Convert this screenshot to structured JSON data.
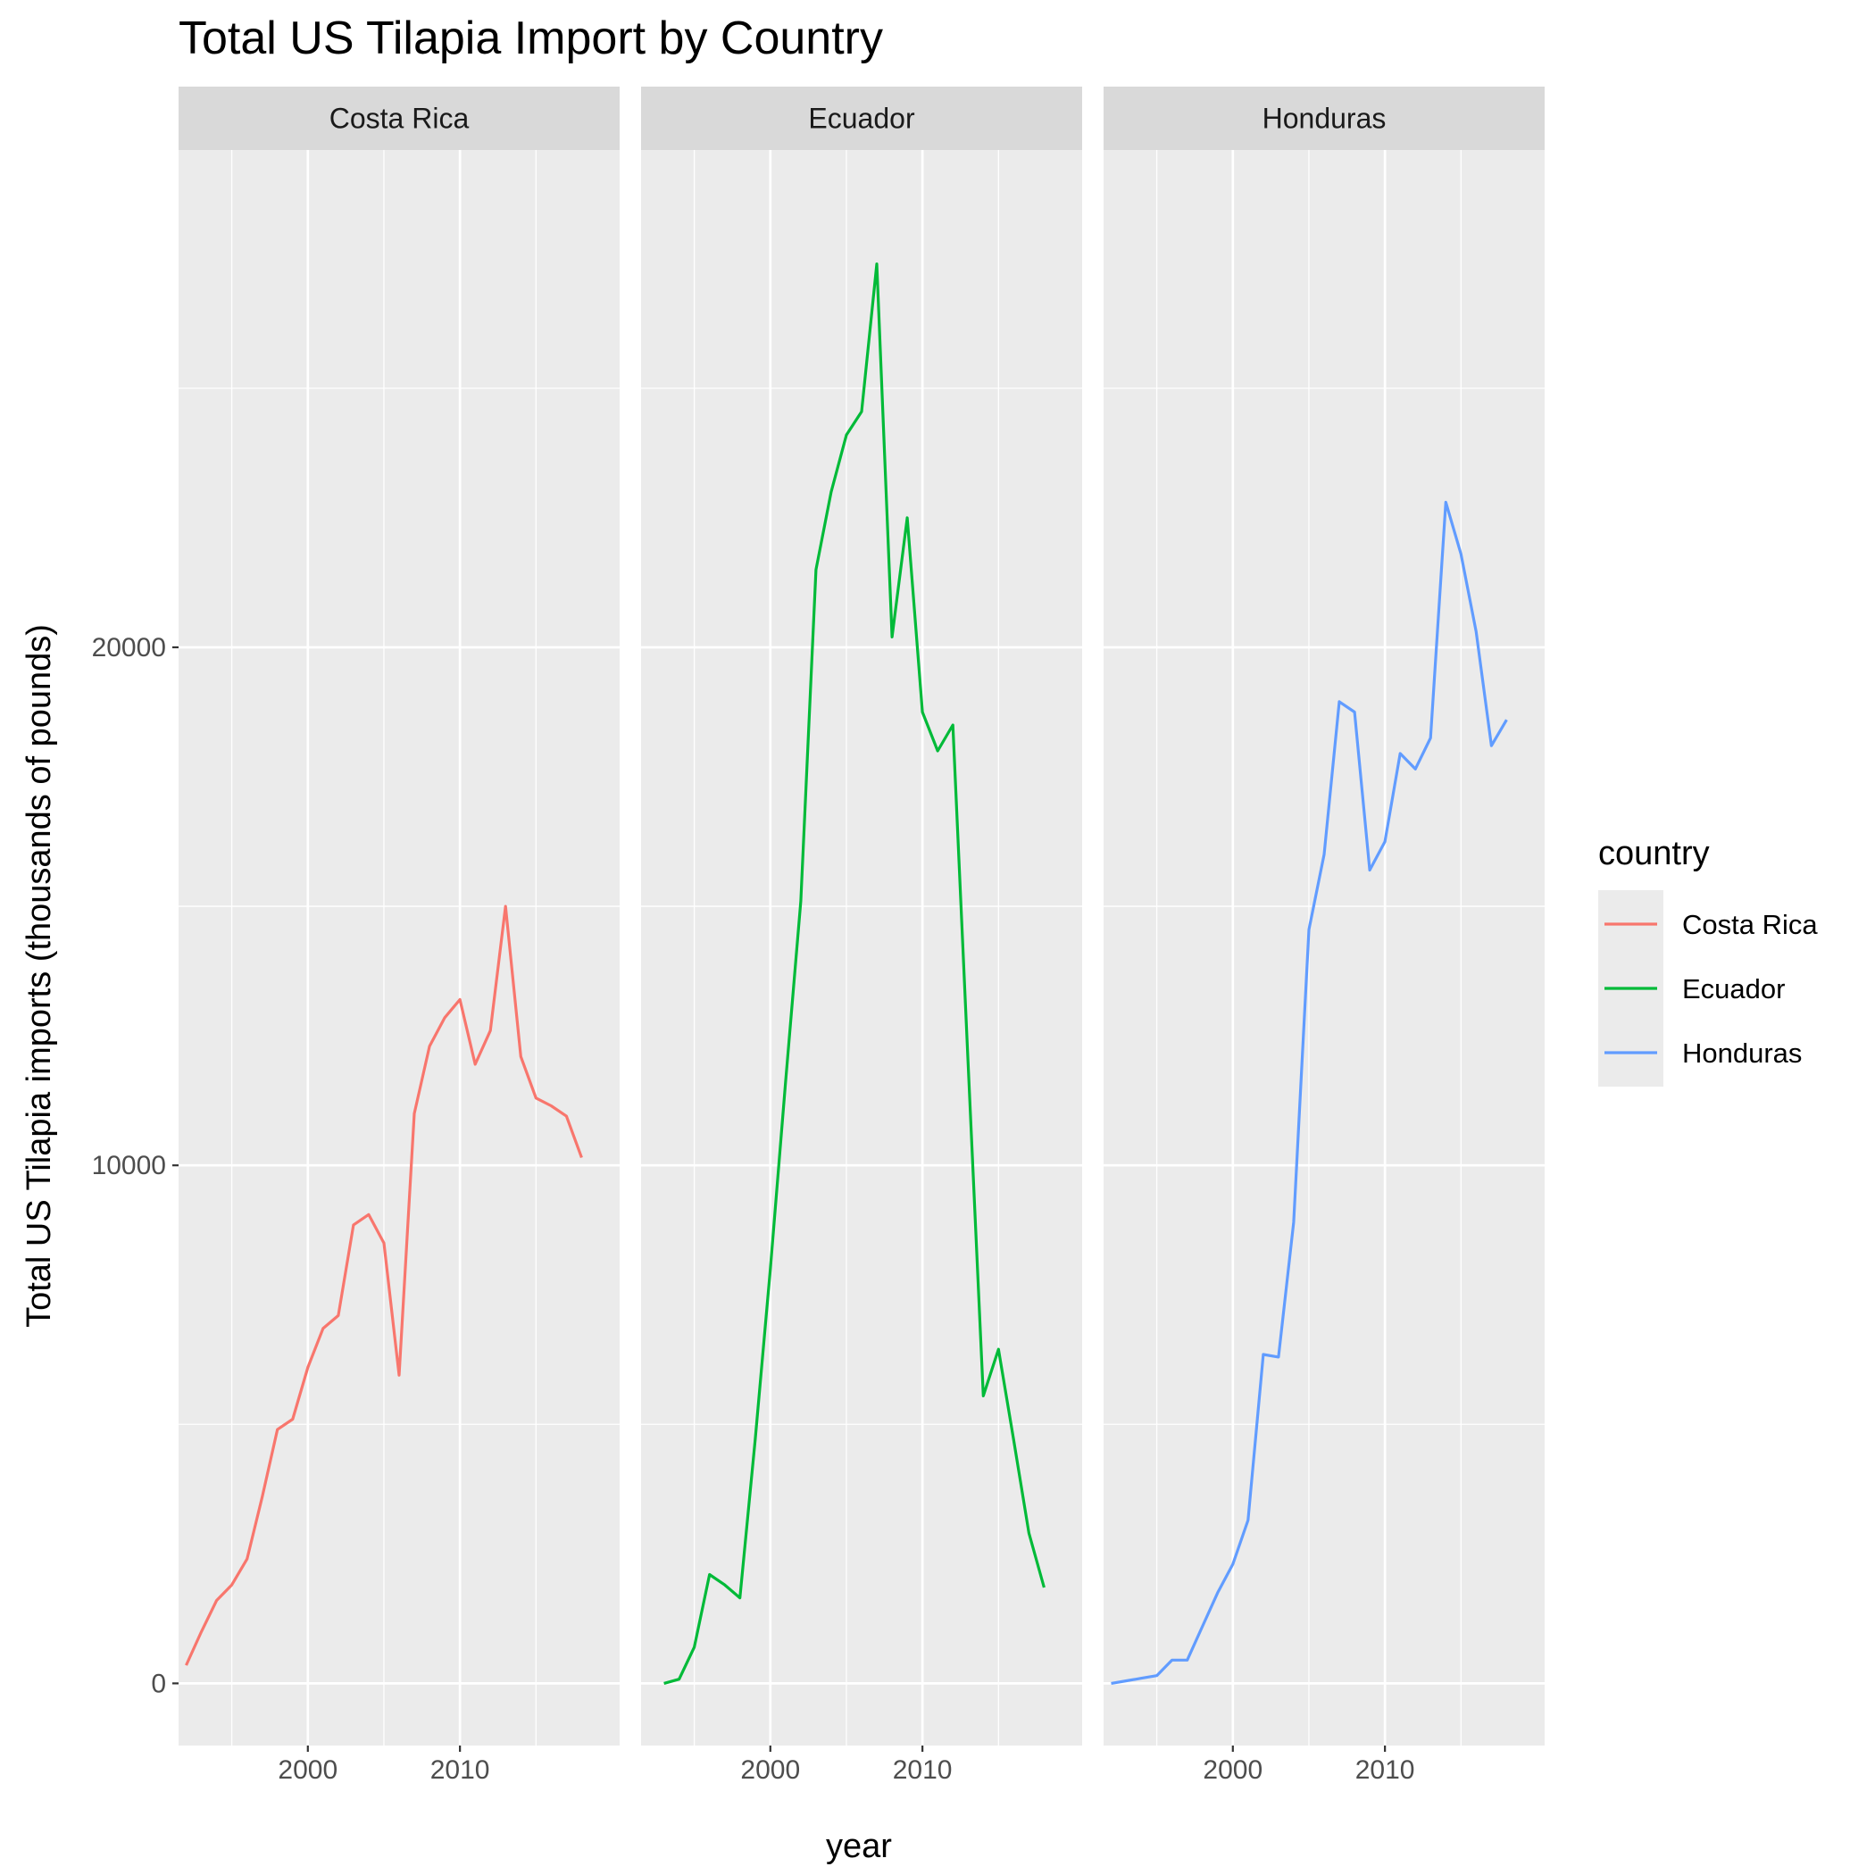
{
  "chart_data": {
    "type": "line",
    "title": "Total US Tilapia Import by Country",
    "xlabel": "year",
    "ylabel": "Total US Tilapia imports (thousands of pounds)",
    "xlim": [
      1991.5,
      2020.5
    ],
    "ylim": [
      -1200,
      29600
    ],
    "x_ticks": [
      2000,
      2010
    ],
    "y_ticks": [
      0,
      10000,
      20000
    ],
    "x_minor": [
      1995,
      2005,
      2015
    ],
    "y_minor": [
      5000,
      15000,
      25000
    ],
    "grid": true,
    "facet_by": "country",
    "legend": {
      "title": "country",
      "position": "right"
    },
    "series": [
      {
        "name": "Costa Rica",
        "color": "#F8766D",
        "x": [
          1992,
          1993,
          1994,
          1995,
          1996,
          1997,
          1998,
          1999,
          2000,
          2001,
          2002,
          2003,
          2004,
          2005,
          2006,
          2007,
          2008,
          2009,
          2010,
          2011,
          2012,
          2013,
          2014,
          2015,
          2016,
          2017,
          2018
        ],
        "y": [
          350,
          1000,
          1600,
          1900,
          2400,
          3600,
          4900,
          5100,
          6100,
          6850,
          7100,
          8850,
          9050,
          8500,
          5950,
          11000,
          12300,
          12850,
          13200,
          11950,
          12600,
          15000,
          12100,
          11300,
          11150,
          10950,
          10150
        ]
      },
      {
        "name": "Ecuador",
        "color": "#00BA38",
        "x": [
          1993,
          1994,
          1995,
          1996,
          1997,
          1998,
          1999,
          2000,
          2001,
          2002,
          2003,
          2004,
          2005,
          2006,
          2007,
          2008,
          2009,
          2010,
          2011,
          2012,
          2013,
          2014,
          2015,
          2016,
          2017,
          2018
        ],
        "y": [
          0,
          80,
          700,
          2100,
          1900,
          1650,
          4700,
          8000,
          11600,
          15100,
          21500,
          23000,
          24100,
          24550,
          27400,
          20200,
          22500,
          18750,
          18000,
          18500,
          12000,
          5550,
          6450,
          4700,
          2900,
          1850
        ]
      },
      {
        "name": "Honduras",
        "color": "#619CFF",
        "x": [
          1992,
          1993,
          1994,
          1995,
          1996,
          1997,
          1998,
          1999,
          2000,
          2001,
          2002,
          2003,
          2004,
          2005,
          2006,
          2007,
          2008,
          2009,
          2010,
          2011,
          2012,
          2013,
          2014,
          2015,
          2016,
          2017,
          2018
        ],
        "y": [
          0,
          50,
          100,
          150,
          450,
          450,
          1100,
          1750,
          2300,
          3150,
          6350,
          6300,
          8900,
          14550,
          16000,
          18950,
          18750,
          15700,
          16250,
          17950,
          17650,
          18250,
          22800,
          21800,
          20300,
          18100,
          18600
        ]
      }
    ]
  }
}
